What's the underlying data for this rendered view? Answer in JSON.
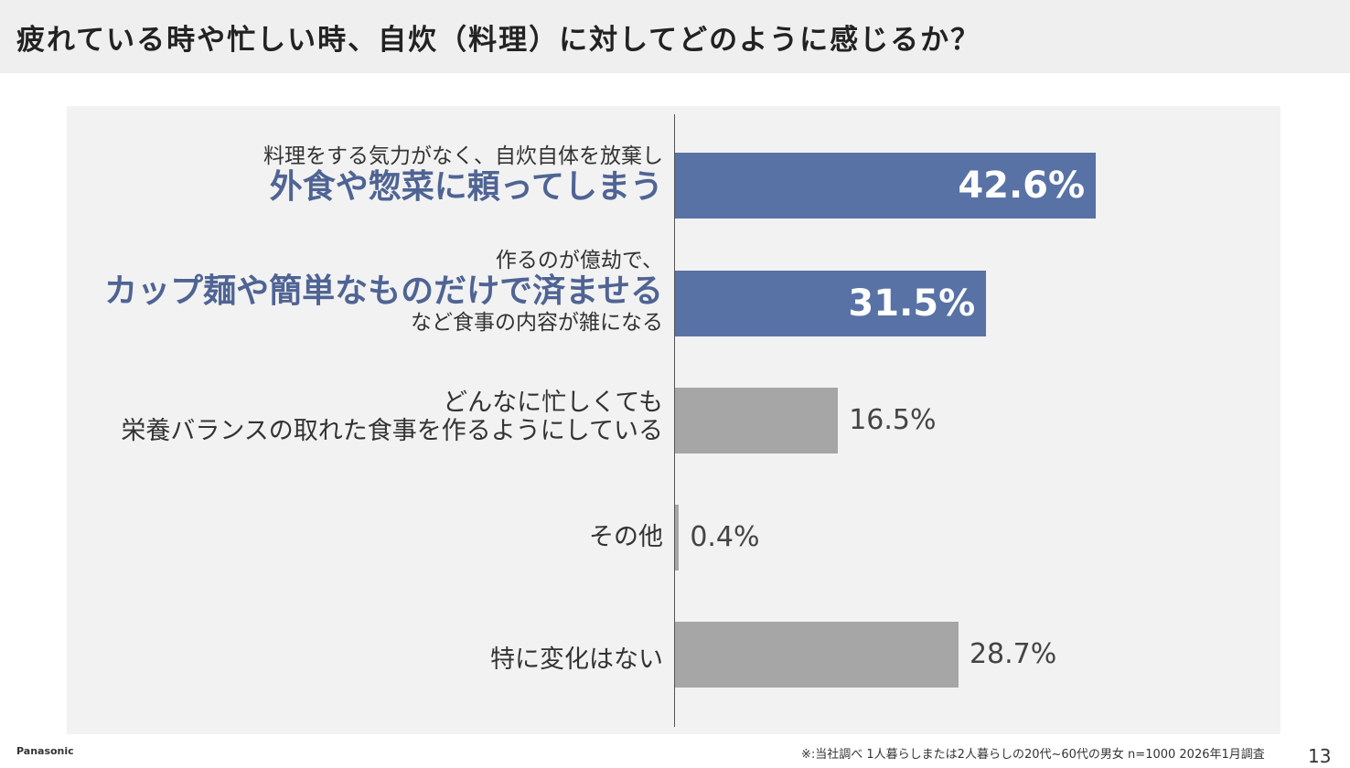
{
  "title": "疲れている時や忙しい時、自炊（料理）に対してどのように感じるか？",
  "chart_data": {
    "type": "bar",
    "orientation": "horizontal",
    "xlim": [
      0,
      100
    ],
    "grid": false,
    "categories": [
      {
        "lines": [
          {
            "text": "料理をする気力がなく、自炊自体を放棄し",
            "style": "small"
          },
          {
            "text": "外食や惣菜に頼ってしまう",
            "style": "big"
          }
        ],
        "value": 42.6,
        "label": "42.6%",
        "highlight": true
      },
      {
        "lines": [
          {
            "text": "作るのが億劫で、",
            "style": "small"
          },
          {
            "text": "カップ麺や簡単なものだけで済ませる",
            "style": "big"
          },
          {
            "text": "など食事の内容が雑になる",
            "style": "small"
          }
        ],
        "value": 31.5,
        "label": "31.5%",
        "highlight": true
      },
      {
        "lines": [
          {
            "text": "どんなに忙しくても",
            "style": "plain"
          },
          {
            "text": "栄養バランスの取れた食事を作るようにしている",
            "style": "plain"
          }
        ],
        "value": 16.5,
        "label": "16.5%",
        "highlight": false
      },
      {
        "lines": [
          {
            "text": "その他",
            "style": "plain"
          }
        ],
        "value": 0.4,
        "label": "0.4%",
        "highlight": false
      },
      {
        "lines": [
          {
            "text": "特に変化はない",
            "style": "plain"
          }
        ],
        "value": 28.7,
        "label": "28.7%",
        "highlight": false
      }
    ],
    "colors": {
      "highlight": "#5872a5",
      "normal": "#a6a6a6",
      "highlight_text": "#4f6494"
    }
  },
  "footer": {
    "brand": "Panasonic",
    "note": "※:当社調べ 1人暮らしまたは2人暮らしの20代~60代の男女 n=1000 2026年1月調査",
    "page": "13"
  }
}
